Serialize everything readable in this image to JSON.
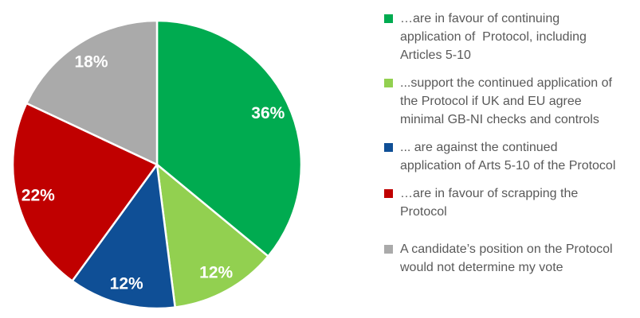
{
  "chart_data": {
    "type": "pie",
    "title": "",
    "start_angle_deg": 0,
    "direction": "clockwise",
    "legend_position": "right",
    "background_color": "#FFFFFF",
    "data_label_color": "#FFFFFF",
    "legend_text_color": "#595959",
    "slices": [
      {
        "label": "…are in favour of continuing application of  Protocol, including Articles 5-10",
        "value": 36,
        "display": "36%",
        "color": "#00AB50"
      },
      {
        "label": "...support the continued application of the Protocol if UK and EU agree minimal GB-NI checks and controls",
        "value": 12,
        "display": "12%",
        "color": "#92D050"
      },
      {
        "label": "... are against the continued application of Arts 5-10 of the Protocol",
        "value": 12,
        "display": "12%",
        "color": "#0F4F96"
      },
      {
        "label": "…are in favour of scrapping the Protocol",
        "value": 22,
        "display": "22%",
        "color": "#C00000"
      },
      {
        "label": "A candidate’s position on the Protocol would not determine my vote",
        "value": 18,
        "display": "18%",
        "color": "#AAAAAA"
      }
    ]
  }
}
